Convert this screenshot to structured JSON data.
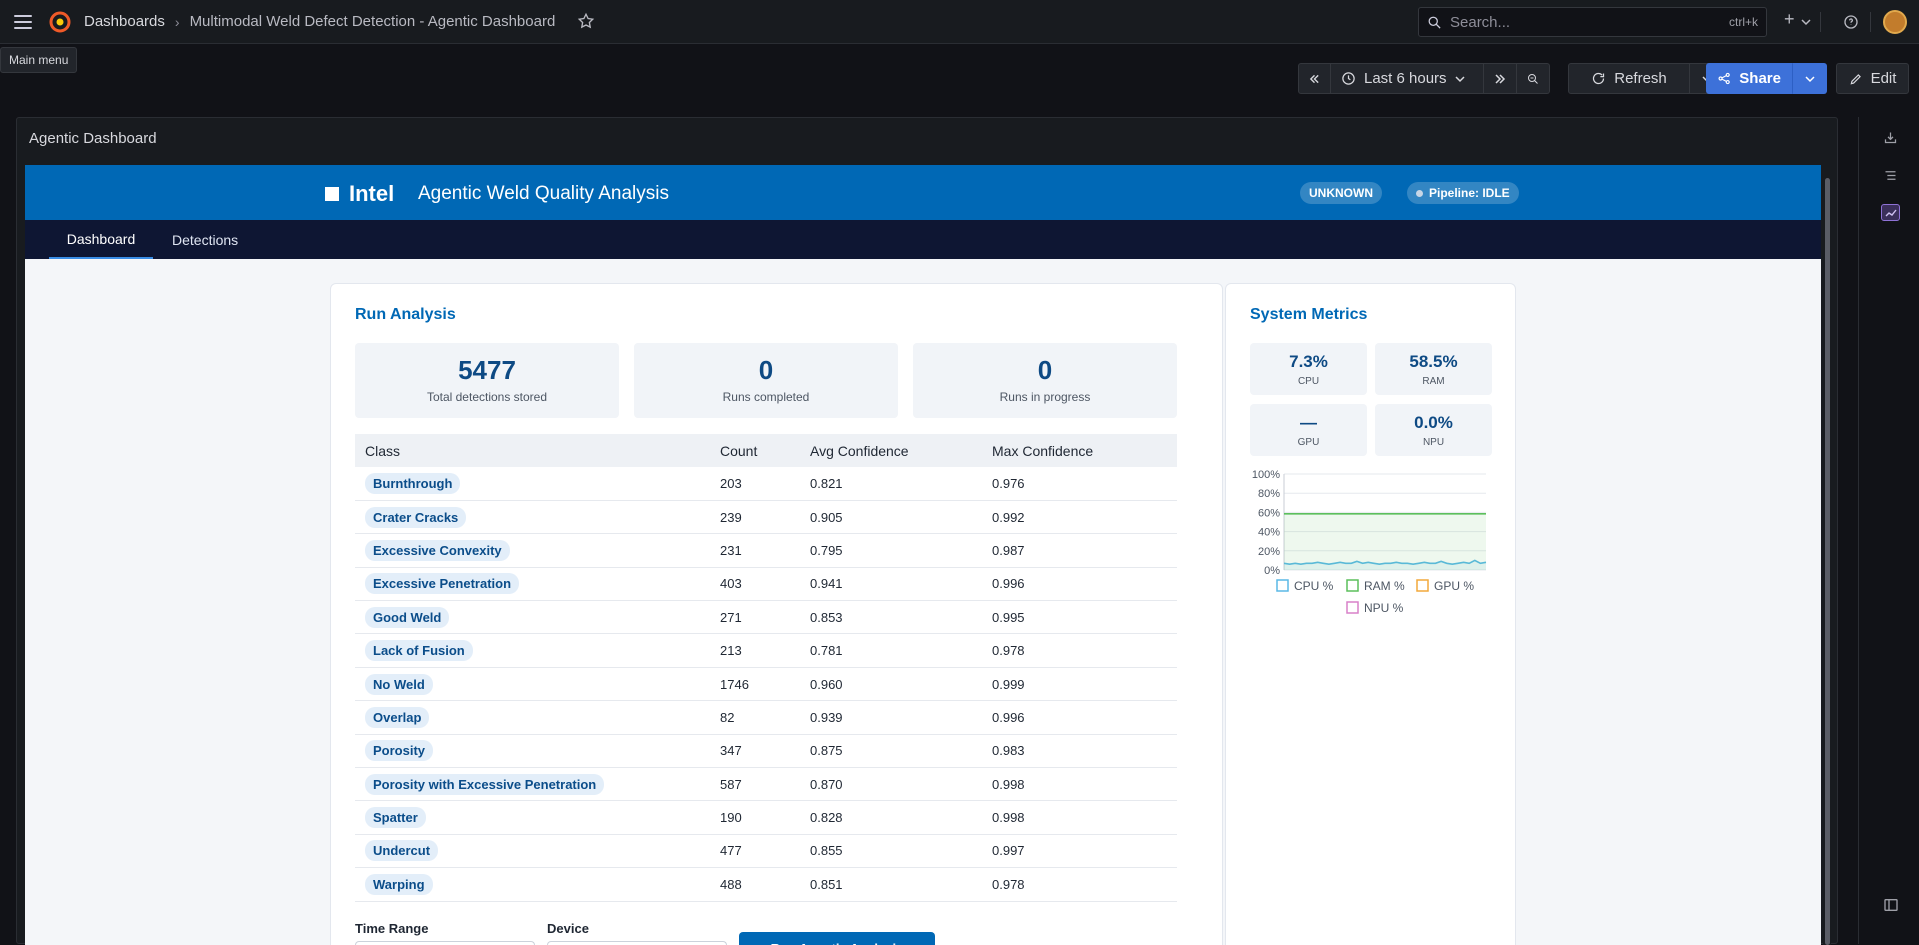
{
  "topbar": {
    "crumb_root": "Dashboards",
    "crumb_sep": "›",
    "crumb_current": "Multimodal Weld Defect Detection - Agentic Dashboard",
    "tooltip": "Main menu",
    "search_placeholder": "Search...",
    "search_shortcut": "ctrl+k",
    "new_label": "+"
  },
  "controls": {
    "time_range": "Last 6 hours",
    "refresh_label": "Refresh",
    "share_label": "Share",
    "edit_label": "Edit"
  },
  "panel": {
    "title": "Agentic Dashboard"
  },
  "app": {
    "brand": "Intel",
    "title": "Agentic Weld Quality Analysis",
    "status_badge": "UNKNOWN",
    "pipeline_badge": "Pipeline: IDLE",
    "tabs": [
      "Dashboard",
      "Detections"
    ]
  },
  "run_analysis": {
    "title": "Run Analysis",
    "stats": [
      {
        "value": "5477",
        "label": "Total detections stored"
      },
      {
        "value": "0",
        "label": "Runs completed"
      },
      {
        "value": "0",
        "label": "Runs in progress"
      }
    ],
    "columns": [
      "Class",
      "Count",
      "Avg Confidence",
      "Max Confidence"
    ],
    "rows": [
      [
        "Burnthrough",
        "203",
        "0.821",
        "0.976"
      ],
      [
        "Crater Cracks",
        "239",
        "0.905",
        "0.992"
      ],
      [
        "Excessive Convexity",
        "231",
        "0.795",
        "0.987"
      ],
      [
        "Excessive Penetration",
        "403",
        "0.941",
        "0.996"
      ],
      [
        "Good Weld",
        "271",
        "0.853",
        "0.995"
      ],
      [
        "Lack of Fusion",
        "213",
        "0.781",
        "0.978"
      ],
      [
        "No Weld",
        "1746",
        "0.960",
        "0.999"
      ],
      [
        "Overlap",
        "82",
        "0.939",
        "0.996"
      ],
      [
        "Porosity",
        "347",
        "0.875",
        "0.983"
      ],
      [
        "Porosity with Excessive Penetration",
        "587",
        "0.870",
        "0.998"
      ],
      [
        "Spatter",
        "190",
        "0.828",
        "0.998"
      ],
      [
        "Undercut",
        "477",
        "0.855",
        "0.997"
      ],
      [
        "Warping",
        "488",
        "0.851",
        "0.978"
      ]
    ],
    "time_range_label": "Time Range",
    "device_label": "Device",
    "run_button": "Run Agentic Analysis"
  },
  "system_metrics": {
    "title": "System Metrics",
    "tiles": [
      {
        "value": "7.3%",
        "label": "CPU"
      },
      {
        "value": "58.5%",
        "label": "RAM"
      },
      {
        "value": "—",
        "label": "GPU"
      },
      {
        "value": "0.0%",
        "label": "NPU"
      }
    ]
  },
  "chart_data": {
    "type": "line",
    "ylim": [
      0,
      100
    ],
    "y_ticks": [
      "100%",
      "80%",
      "60%",
      "40%",
      "20%",
      "0%"
    ],
    "legend_position": "bottom",
    "series": [
      {
        "name": "CPU %",
        "color": "#5ab9e6",
        "values": [
          7,
          6,
          7,
          6,
          7,
          7,
          8,
          7,
          6,
          7,
          8,
          7,
          7,
          9,
          7,
          8,
          7,
          6,
          7,
          7,
          8,
          7,
          7,
          6,
          7,
          8,
          7,
          7,
          9,
          7,
          6,
          7,
          8,
          7,
          10,
          7,
          8
        ]
      },
      {
        "name": "RAM %",
        "color": "#5cbf5c",
        "values": [
          58.5,
          58.5,
          58.5,
          58.5,
          58.5,
          58.5,
          58.5,
          58.5,
          58.5,
          58.5,
          58.5,
          58.5,
          58.5,
          58.5,
          58.5,
          58.5,
          58.5,
          58.5,
          58.5,
          58.5,
          58.5,
          58.5,
          58.5,
          58.5,
          58.5,
          58.5,
          58.5,
          58.5,
          58.5,
          58.5,
          58.5,
          58.5,
          58.5,
          58.5,
          58.5,
          58.5,
          58.5
        ]
      },
      {
        "name": "GPU %",
        "color": "#f2a83b",
        "values": []
      },
      {
        "name": "NPU %",
        "color": "#d980c9",
        "values": []
      }
    ]
  }
}
